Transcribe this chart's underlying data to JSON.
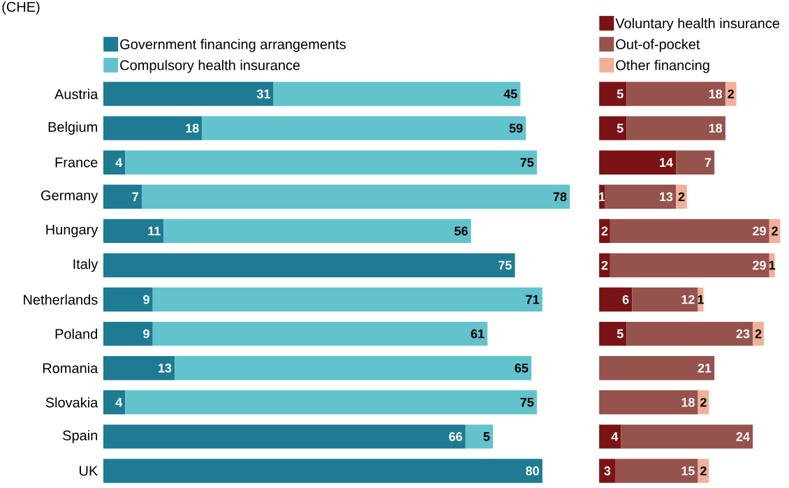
{
  "chart_data": [
    {
      "type": "bar",
      "orientation": "horizontal",
      "stacked": true,
      "data_labels": true,
      "legend": "top left",
      "tick_labels": "y",
      "xlim": [
        0,
        85
      ],
      "annotations": [
        "(CHE)"
      ],
      "categories": [
        "Austria",
        "Belgium",
        "France",
        "Germany",
        "Hungary",
        "Italy",
        "Netherlands",
        "Poland",
        "Romania",
        "Slovakia",
        "Spain",
        "UK"
      ],
      "series": [
        {
          "name": "Government financing arrangements",
          "color": "#1f7a94",
          "values": [
            31,
            18,
            4,
            7,
            11,
            75,
            9,
            9,
            13,
            4,
            66,
            80
          ]
        },
        {
          "name": "Compulsory health insurance",
          "color": "#62c3cc",
          "values": [
            45,
            59,
            75,
            78,
            56,
            null,
            71,
            61,
            65,
            75,
            5,
            null
          ]
        }
      ]
    },
    {
      "type": "bar",
      "orientation": "horizontal",
      "stacked": true,
      "data_labels": true,
      "legend": "top left",
      "xlim": [
        0,
        33
      ],
      "categories": [
        null,
        null,
        null,
        null,
        null,
        null,
        null,
        null,
        null,
        null,
        null,
        null
      ],
      "series": [
        {
          "name": "Voluntary health insurance",
          "color": "#7a1315",
          "values": [
            5,
            5,
            14,
            1,
            2,
            2,
            6,
            5,
            null,
            null,
            4,
            3
          ]
        },
        {
          "name": "Out-of-pocket",
          "color": "#96524d",
          "values": [
            18,
            18,
            7,
            13,
            29,
            29,
            12,
            23,
            21,
            18,
            24,
            15
          ]
        },
        {
          "name": "Other financing",
          "color": "#f0b09a",
          "values": [
            2,
            null,
            null,
            2,
            2,
            1,
            1,
            2,
            null,
            2,
            null,
            2
          ]
        }
      ]
    }
  ]
}
